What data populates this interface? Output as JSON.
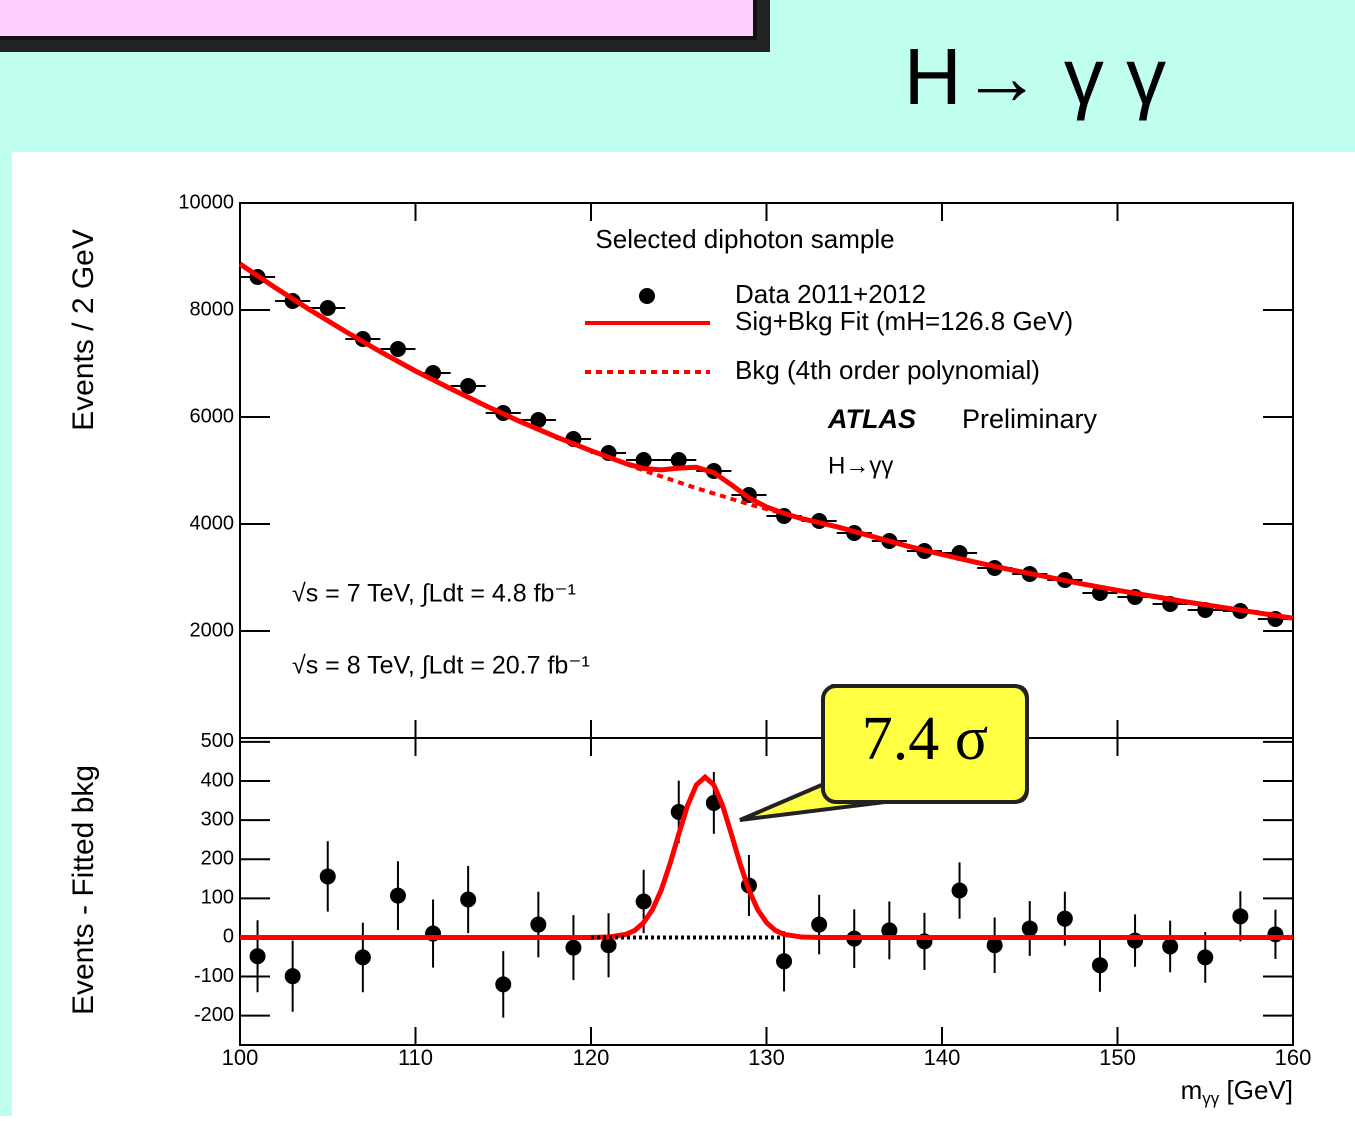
{
  "title": "H→ γ γ",
  "chart_data": [
    {
      "type": "scatter",
      "ylabel": "Events / 2 GeV",
      "xlim": [
        100,
        160
      ],
      "ylim": [
        0,
        10000
      ],
      "xticks": [
        100,
        110,
        120,
        130,
        140,
        150,
        160
      ],
      "yticks": [
        2000,
        4000,
        6000,
        8000,
        10000
      ],
      "annotations": [
        "Selected diphoton sample",
        "ATLAS",
        "Preliminary",
        "H→γγ",
        "√s = 7 TeV, ∫Ldt = 4.8 fb⁻¹",
        "√s = 8 TeV, ∫Ldt = 20.7 fb⁻¹"
      ],
      "series": [
        {
          "name": "Data 2011+2012",
          "color": "#000000",
          "mode": "markers",
          "x": [
            101,
            103,
            105,
            107,
            109,
            111,
            113,
            115,
            117,
            119,
            121,
            123,
            125,
            127,
            129,
            131,
            133,
            135,
            137,
            139,
            141,
            143,
            145,
            147,
            149,
            151,
            153,
            155,
            157,
            159
          ],
          "values": [
            8617,
            8168,
            8037,
            7458,
            7271,
            6822,
            6579,
            6075,
            5944,
            5589,
            5327,
            5196,
            5196,
            4991,
            4542,
            4150,
            4056,
            3832,
            3682,
            3495,
            3458,
            3178,
            3065,
            2953,
            2710,
            2636,
            2505,
            2393,
            2374,
            2224
          ]
        },
        {
          "name": "Sig+Bkg Fit (mH=126.8 GeV)",
          "color": "#ff0000",
          "mode": "line",
          "x": [
            100,
            102,
            104,
            106,
            108,
            110,
            112,
            114,
            116,
            118,
            120,
            122,
            123,
            124,
            125,
            126,
            127,
            128,
            129,
            130,
            131,
            132,
            134,
            136,
            138,
            140,
            142,
            144,
            146,
            148,
            150,
            152,
            154,
            156,
            158,
            160
          ],
          "values": [
            8860,
            8420,
            8000,
            7600,
            7220,
            6860,
            6530,
            6210,
            5910,
            5630,
            5370,
            5128,
            5038,
            5011,
            5044,
            5060,
            4960,
            4734,
            4491,
            4318,
            4198,
            4101,
            3950,
            3770,
            3590,
            3430,
            3280,
            3140,
            3010,
            2880,
            2760,
            2650,
            2540,
            2440,
            2340,
            2240
          ]
        },
        {
          "name": "Bkg (4th order polynomial)",
          "color": "#ff0000",
          "mode": "dashed",
          "x": [
            122,
            123,
            124,
            125,
            126,
            127,
            128,
            129,
            130,
            131,
            132
          ],
          "values": [
            5120,
            5000,
            4890,
            4780,
            4670,
            4570,
            4470,
            4370,
            4280,
            4190,
            4100
          ]
        }
      ]
    },
    {
      "type": "scatter",
      "ylabel": "Events - Fitted bkg",
      "xlabel_parts": [
        "m",
        "γγ",
        " [GeV]"
      ],
      "xlim": [
        100,
        160
      ],
      "ylim": [
        -275,
        510
      ],
      "xticks": [
        100,
        110,
        120,
        130,
        140,
        150,
        160
      ],
      "yticks": [
        -200,
        -100,
        0,
        100,
        200,
        300,
        400,
        500
      ],
      "callout": "7.4 σ",
      "series": [
        {
          "mode": "markers",
          "color": "#000000",
          "x": [
            101,
            103,
            105,
            107,
            109,
            111,
            113,
            115,
            117,
            119,
            121,
            123,
            125,
            127,
            129,
            131,
            133,
            135,
            137,
            139,
            141,
            143,
            145,
            147,
            149,
            151,
            153,
            155,
            157,
            159
          ],
          "values": [
            -48,
            -99,
            156,
            -51,
            107,
            10,
            97,
            -120,
            33,
            -26,
            -20,
            92,
            321,
            344,
            133,
            -61,
            33,
            -3,
            18,
            -10,
            120,
            -20,
            23,
            48,
            -71,
            -8,
            -23,
            -51,
            54,
            8
          ],
          "errors": [
            92,
            91,
            90,
            89,
            88,
            87,
            86,
            85,
            84,
            83,
            82,
            81,
            80,
            79,
            78,
            77,
            76,
            75,
            74,
            73,
            72,
            71,
            70,
            69,
            68,
            67,
            66,
            65,
            64,
            63
          ]
        },
        {
          "mode": "line",
          "color": "#ff0000",
          "x": [
            100,
            120,
            121,
            122,
            122.5,
            123,
            123.5,
            124,
            124.5,
            125,
            125.5,
            126,
            126.5,
            127,
            127.5,
            128,
            128.5,
            129,
            129.5,
            130,
            130.5,
            131,
            132,
            133,
            160
          ],
          "values": [
            0,
            0,
            1,
            8,
            18,
            38,
            71,
            121,
            188,
            264,
            337,
            390,
            410,
            390,
            337,
            264,
            188,
            121,
            71,
            38,
            18,
            8,
            1,
            0,
            0
          ]
        },
        {
          "mode": "dotted",
          "color": "#000000",
          "x": [
            120,
            131
          ],
          "values": [
            0,
            0
          ]
        }
      ]
    }
  ]
}
